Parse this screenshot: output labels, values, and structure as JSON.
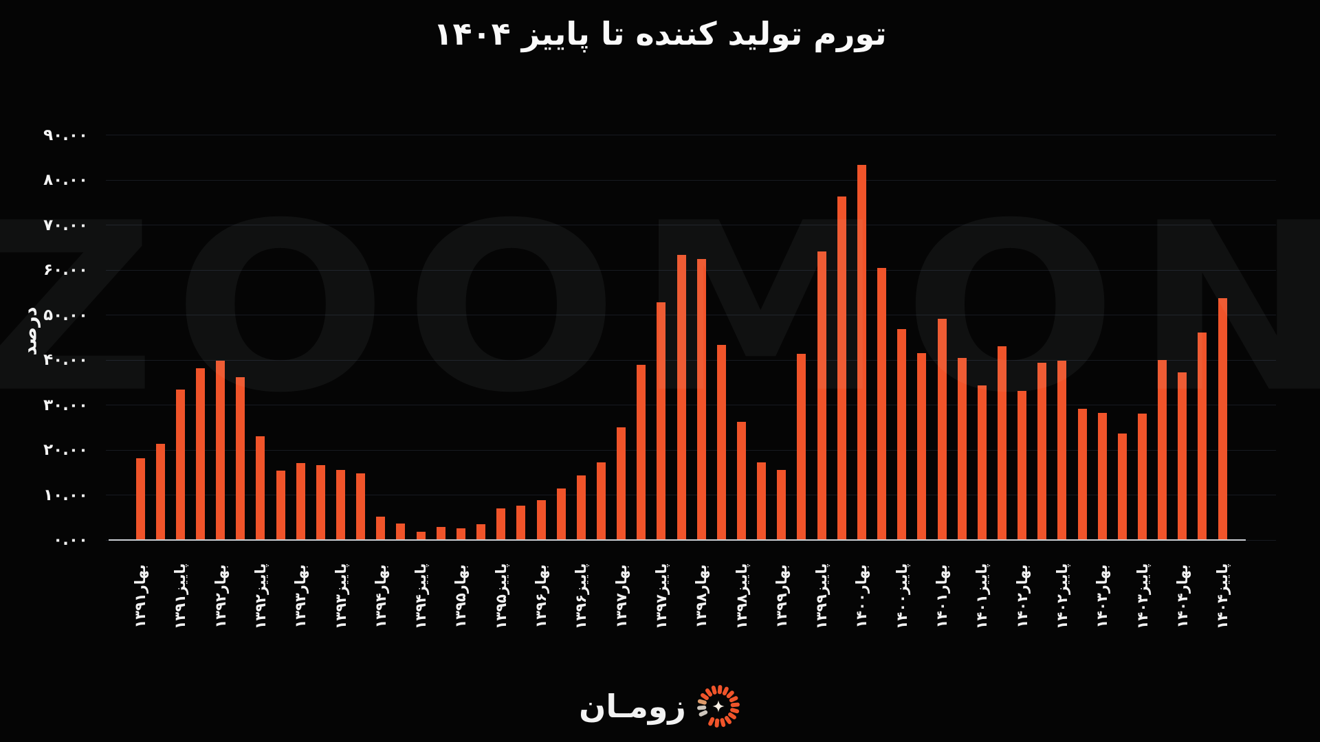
{
  "page": {
    "background": "#050505",
    "text_color": "#fafafa"
  },
  "watermark": {
    "text": "ZOOMON"
  },
  "logo": {
    "text": "زومـان",
    "icon": "sunburst-spinner-icon",
    "icon_color": "#F0542A"
  },
  "chart_data": {
    "type": "bar",
    "title": "تورم تولید کننده تا پاییز ۱۴۰۴",
    "ylabel": "درصد",
    "xlabel": "",
    "ylim": [
      0,
      90
    ],
    "grid": "horizontal",
    "legend": "none",
    "bar_color": "#F0542A",
    "background": "#050505",
    "ytick_values": [
      0,
      10,
      20,
      30,
      40,
      50,
      60,
      70,
      80,
      90
    ],
    "ytick_labels": [
      "۰.۰۰",
      "۱۰.۰۰",
      "۲۰.۰۰",
      "۳۰.۰۰",
      "۴۰.۰۰",
      "۵۰.۰۰",
      "۶۰.۰۰",
      "۷۰.۰۰",
      "۸۰.۰۰",
      "۹۰.۰۰"
    ],
    "x_tick_every": 2,
    "x_tick_labels": [
      "بهار۱۳۹۱",
      "پاییز۱۳۹۱",
      "بهار۱۳۹۲",
      "پاییز۱۳۹۲",
      "بهار۱۳۹۳",
      "پاییز۱۳۹۳",
      "بهار۱۳۹۴",
      "پاییز۱۳۹۴",
      "بهار۱۳۹۵",
      "پاییز۱۳۹۵",
      "بهار۱۳۹۶",
      "پاییز۱۳۹۶",
      "بهار۱۳۹۷",
      "پاییز۱۳۹۷",
      "بهار۱۳۹۸",
      "پاییز۱۳۹۸",
      "بهار۱۳۹۹",
      "پاییز۱۳۹۹",
      "بهار۱۴۰۰",
      "پاییز۱۴۰۰",
      "بهار۱۴۰۱",
      "پاییز۱۴۰۱",
      "بهار۱۴۰۲",
      "پاییز۱۴۰۲",
      "بهار۱۴۰۳",
      "پاییز۱۴۰۳",
      "بهار۱۴۰۴",
      "پاییز۱۴۰۴"
    ],
    "values": [
      18.2,
      21.3,
      33.5,
      38.2,
      39.8,
      36.2,
      23.1,
      15.4,
      17.1,
      16.6,
      15.5,
      14.8,
      5.2,
      3.6,
      1.8,
      2.9,
      2.6,
      3.5,
      7.0,
      7.7,
      8.8,
      11.4,
      14.4,
      17.2,
      25.0,
      39.0,
      52.8,
      63.4,
      62.4,
      43.3,
      26.2,
      17.2,
      15.5,
      41.4,
      64.1,
      76.3,
      83.4,
      60.4,
      46.9,
      41.5,
      49.2,
      40.4,
      34.3,
      43.0,
      33.2,
      39.4,
      39.9,
      29.1,
      28.3,
      23.7,
      28.1,
      40.0,
      37.3,
      46.1,
      53.7
    ]
  }
}
